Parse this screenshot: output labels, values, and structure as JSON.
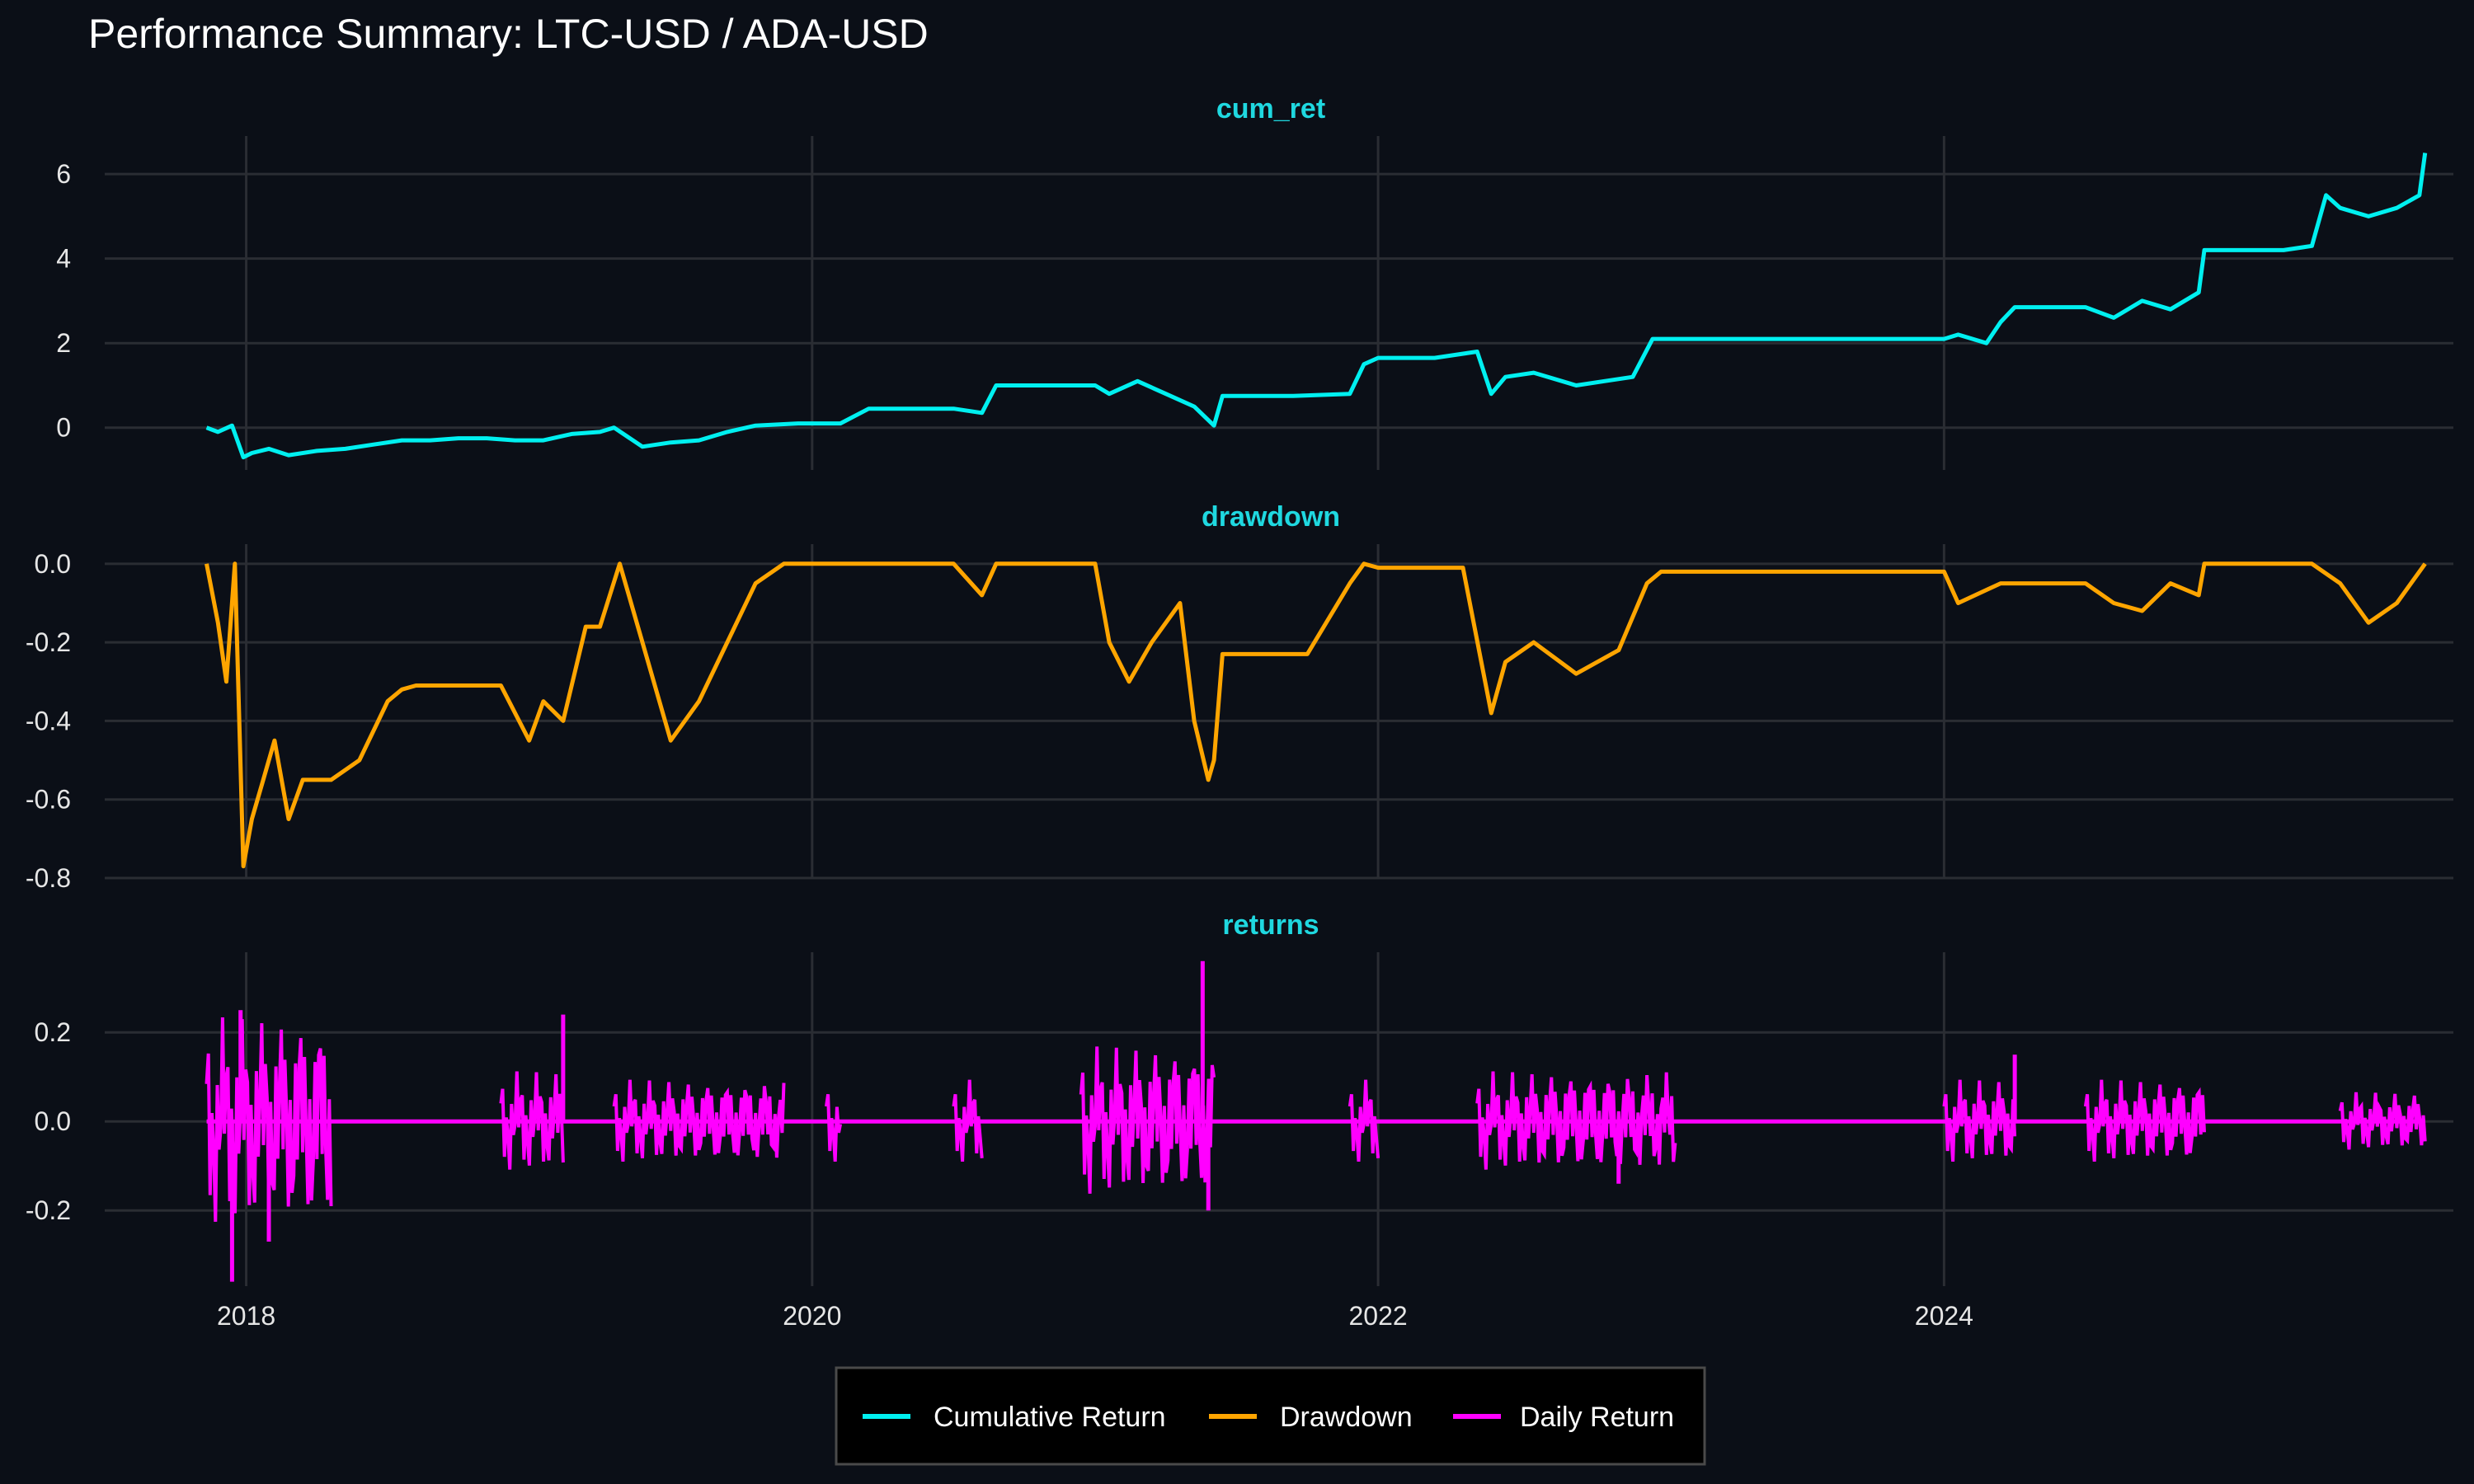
{
  "chart_data": {
    "title": "Performance Summary: LTC-USD / ADA-USD",
    "type": "line",
    "legend_position": "bottom",
    "x_ticks": [
      2018,
      2020,
      2022,
      2024
    ],
    "x_range": [
      2017.5,
      2025.8
    ],
    "colors": {
      "background": "#0b0f17",
      "grid": "#2a2d33",
      "cum_ret": "#00f0f0",
      "drawdown": "#ffa500",
      "returns": "#ff00ff",
      "strip": "#1fd8e0"
    },
    "legend": [
      {
        "label": "Cumulative Return",
        "color": "#00f0f0"
      },
      {
        "label": "Drawdown",
        "color": "#ffa500"
      },
      {
        "label": "Daily Return",
        "color": "#ff00ff"
      }
    ],
    "panels": [
      {
        "name": "cum_ret",
        "series": "Cumulative Return",
        "ylim": [
          -1.0,
          6.9
        ],
        "yticks": [
          0,
          2,
          4,
          6
        ],
        "x": [
          2017.86,
          2017.9,
          2017.95,
          2017.99,
          2018.02,
          2018.08,
          2018.15,
          2018.25,
          2018.35,
          2018.45,
          2018.55,
          2018.65,
          2018.75,
          2018.85,
          2018.95,
          2019.05,
          2019.15,
          2019.25,
          2019.3,
          2019.4,
          2019.5,
          2019.6,
          2019.7,
          2019.8,
          2019.95,
          2020.1,
          2020.2,
          2020.3,
          2020.5,
          2020.6,
          2020.65,
          2020.8,
          2021.0,
          2021.05,
          2021.15,
          2021.25,
          2021.35,
          2021.42,
          2021.45,
          2021.5,
          2021.7,
          2021.9,
          2021.95,
          2022.0,
          2022.2,
          2022.35,
          2022.4,
          2022.45,
          2022.55,
          2022.7,
          2022.8,
          2022.9,
          2022.97,
          2023.05,
          2023.3,
          2023.7,
          2024.0,
          2024.05,
          2024.15,
          2024.2,
          2024.25,
          2024.3,
          2024.45,
          2024.5,
          2024.6,
          2024.7,
          2024.8,
          2024.9,
          2024.92,
          2025.2,
          2025.3,
          2025.35,
          2025.4,
          2025.5,
          2025.6,
          2025.68,
          2025.7
        ],
        "y": [
          0.0,
          -0.1,
          0.05,
          -0.7,
          -0.6,
          -0.5,
          -0.65,
          -0.55,
          -0.5,
          -0.4,
          -0.3,
          -0.3,
          -0.25,
          -0.25,
          -0.3,
          -0.3,
          -0.15,
          -0.1,
          0.0,
          -0.45,
          -0.35,
          -0.3,
          -0.1,
          0.05,
          0.1,
          0.1,
          0.45,
          0.45,
          0.45,
          0.35,
          1.0,
          1.0,
          1.0,
          0.8,
          1.1,
          0.8,
          0.5,
          0.05,
          0.75,
          0.75,
          0.75,
          0.8,
          1.5,
          1.65,
          1.65,
          1.8,
          0.8,
          1.2,
          1.3,
          1.0,
          1.1,
          1.2,
          2.1,
          2.1,
          2.1,
          2.1,
          2.1,
          2.2,
          2.0,
          2.5,
          2.85,
          2.85,
          2.85,
          2.85,
          2.6,
          3.0,
          2.8,
          3.2,
          4.2,
          4.2,
          4.3,
          5.5,
          5.2,
          5.0,
          5.2,
          5.5,
          6.5
        ]
      },
      {
        "name": "drawdown",
        "series": "Drawdown",
        "ylim": [
          -0.8,
          0.05
        ],
        "yticks": [
          0.0,
          -0.2,
          -0.4,
          -0.6,
          -0.8
        ],
        "x": [
          2017.86,
          2017.9,
          2017.93,
          2017.96,
          2017.99,
          2018.02,
          2018.06,
          2018.1,
          2018.15,
          2018.2,
          2018.3,
          2018.4,
          2018.5,
          2018.55,
          2018.6,
          2018.7,
          2018.9,
          2019.0,
          2019.05,
          2019.12,
          2019.2,
          2019.25,
          2019.32,
          2019.4,
          2019.5,
          2019.6,
          2019.7,
          2019.8,
          2019.9,
          2020.0,
          2020.1,
          2020.2,
          2020.5,
          2020.6,
          2020.65,
          2020.8,
          2021.0,
          2021.05,
          2021.12,
          2021.2,
          2021.3,
          2021.35,
          2021.4,
          2021.42,
          2021.45,
          2021.5,
          2021.75,
          2021.9,
          2021.95,
          2022.0,
          2022.3,
          2022.4,
          2022.45,
          2022.55,
          2022.7,
          2022.85,
          2022.95,
          2023.0,
          2023.05,
          2023.5,
          2024.0,
          2024.05,
          2024.2,
          2024.3,
          2024.5,
          2024.6,
          2024.7,
          2024.8,
          2024.9,
          2024.92,
          2025.2,
          2025.3,
          2025.4,
          2025.5,
          2025.6,
          2025.7
        ],
        "y": [
          0.0,
          -0.15,
          -0.3,
          0.0,
          -0.77,
          -0.65,
          -0.55,
          -0.45,
          -0.65,
          -0.55,
          -0.55,
          -0.5,
          -0.35,
          -0.32,
          -0.31,
          -0.31,
          -0.31,
          -0.45,
          -0.35,
          -0.4,
          -0.16,
          -0.16,
          0.0,
          -0.2,
          -0.45,
          -0.35,
          -0.2,
          -0.05,
          0.0,
          0.0,
          0.0,
          0.0,
          0.0,
          -0.08,
          0.0,
          0.0,
          0.0,
          -0.2,
          -0.3,
          -0.2,
          -0.1,
          -0.4,
          -0.55,
          -0.5,
          -0.23,
          -0.23,
          -0.23,
          -0.05,
          0.0,
          -0.01,
          -0.01,
          -0.38,
          -0.25,
          -0.2,
          -0.28,
          -0.22,
          -0.05,
          -0.02,
          -0.02,
          -0.02,
          -0.02,
          -0.1,
          -0.05,
          -0.05,
          -0.05,
          -0.1,
          -0.12,
          -0.05,
          -0.08,
          0.0,
          0.0,
          0.0,
          -0.05,
          -0.15,
          -0.1,
          0.0
        ]
      },
      {
        "name": "returns",
        "series": "Daily Return",
        "ylim": [
          -0.37,
          0.38
        ],
        "yticks": [
          0.2,
          0.0,
          -0.2
        ],
        "active_segments": [
          [
            2017.86,
            2018.3,
            0.25
          ],
          [
            2018.9,
            2019.12,
            0.12
          ],
          [
            2019.3,
            2019.9,
            0.1
          ],
          [
            2020.05,
            2020.1,
            0.1
          ],
          [
            2020.5,
            2020.6,
            0.1
          ],
          [
            2020.95,
            2021.42,
            0.18
          ],
          [
            2021.9,
            2022.0,
            0.1
          ],
          [
            2022.35,
            2023.05,
            0.12
          ],
          [
            2024.0,
            2024.25,
            0.1
          ],
          [
            2024.5,
            2024.92,
            0.1
          ],
          [
            2025.4,
            2025.7,
            0.07
          ]
        ],
        "spikes": [
          {
            "x": 2017.95,
            "y": -0.36
          },
          {
            "x": 2017.98,
            "y": 0.25
          },
          {
            "x": 2018.08,
            "y": -0.27
          },
          {
            "x": 2019.12,
            "y": 0.24
          },
          {
            "x": 2021.38,
            "y": 0.36
          },
          {
            "x": 2021.4,
            "y": -0.2
          },
          {
            "x": 2022.85,
            "y": -0.14
          },
          {
            "x": 2024.25,
            "y": 0.15
          }
        ]
      }
    ]
  }
}
